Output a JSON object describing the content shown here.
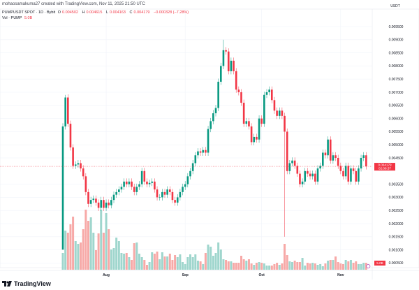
{
  "credit": "mohaosamakuma27 created with TradingView.com, Nov 11, 2025 21:50 UTC",
  "legend": {
    "symbol": "PUMPUSDT SPOT · 1D · Bybit",
    "open_label": "O",
    "open": "0.004502",
    "high_label": "H",
    "high": "0.004615",
    "low_label": "L",
    "low": "0.004163",
    "close_label": "C",
    "close": "0.004179",
    "change": "−0.000328 (−7.28%)",
    "volume_label": "Vol · PUMP",
    "volume": "5.0B"
  },
  "branding": "TradingView",
  "colors": {
    "up": "#089981",
    "down": "#f23645",
    "vol_up": "#9fd6cd",
    "vol_down": "#f7a9a7",
    "grid": "#f0f3fa"
  },
  "chart_data": {
    "type": "candlestick",
    "interval": "1D",
    "first_date": "2025-07-15",
    "first_open": 0.00101,
    "currency": "USDT",
    "y_ticks": [
      "0.009500",
      "0.009000",
      "0.008500",
      "0.008000",
      "0.007500",
      "0.007000",
      "0.006500",
      "0.006000",
      "0.005500",
      "0.005000",
      "0.004500",
      "0.003500",
      "0.003000",
      "0.002500",
      "0.002000",
      "0.001500",
      "0.001000",
      "0.000500"
    ],
    "ylim": [
      0.0003,
      0.0098
    ],
    "x_ticks": [
      {
        "label": "Aug",
        "date": "2025-08-01"
      },
      {
        "label": "Sep",
        "date": "2025-09-01"
      },
      {
        "label": "Oct",
        "date": "2025-10-01"
      },
      {
        "label": "Nov",
        "date": "2025-11-01"
      }
    ],
    "last_price": "0.004179",
    "countdown": "02:08:37",
    "last_volume_label": "5.0B",
    "close": [
      0.0057,
      0.0068,
      0.0058,
      0.0049,
      0.0042,
      0.00425,
      0.0043,
      0.0041,
      0.0038,
      0.0032,
      0.00275,
      0.0029,
      0.00295,
      0.0028,
      0.0026,
      0.0029,
      0.0026,
      0.0028,
      0.0027,
      0.0029,
      0.0031,
      0.0032,
      0.0033,
      0.0034,
      0.0036,
      0.0035,
      0.0036,
      0.0034,
      0.0032,
      0.0034,
      0.0035,
      0.004,
      0.0036,
      0.0035,
      0.00355,
      0.0036,
      0.0033,
      0.003,
      0.003,
      0.0032,
      0.0031,
      0.0033,
      0.0032,
      0.0029,
      0.0028,
      0.003,
      0.0032,
      0.0034,
      0.0035,
      0.0038,
      0.004,
      0.0043,
      0.0046,
      0.00475,
      0.0047,
      0.0048,
      0.0047,
      0.0056,
      0.0059,
      0.0062,
      0.0064,
      0.0074,
      0.008,
      0.0086,
      0.00855,
      0.0078,
      0.0082,
      0.0078,
      0.0071,
      0.007,
      0.0066,
      0.0058,
      0.0059,
      0.0057,
      0.0051,
      0.0053,
      0.0052,
      0.006,
      0.0058,
      0.0069,
      0.007,
      0.0071,
      0.0067,
      0.0063,
      0.0061,
      0.0063,
      0.0061,
      0.0055,
      0.004,
      0.0043,
      0.0044,
      0.0042,
      0.0039,
      0.0035,
      0.0036,
      0.004,
      0.0039,
      0.0038,
      0.0039,
      0.0036,
      0.0041,
      0.0042,
      0.0047,
      0.0046,
      0.0052,
      0.0044,
      0.0046,
      0.0045,
      0.0042,
      0.004,
      0.0038,
      0.0042,
      0.0036,
      0.0041,
      0.004,
      0.0036,
      0.0041,
      0.0045,
      0.0046,
      0.004179
    ],
    "volume_unit": "B",
    "volume": [
      12,
      28,
      26.5,
      32.5,
      38,
      20.5,
      18.5,
      19.5,
      29,
      43,
      35,
      37.5,
      26.5,
      14,
      26,
      43,
      26.5,
      40.5,
      29,
      14.5,
      15.5,
      23,
      20.5,
      12,
      11.5,
      12,
      9,
      7,
      19,
      19.5,
      11.5,
      9,
      7,
      3.5,
      5.5,
      12.5,
      11.5,
      13,
      7.5,
      12.5,
      9.5,
      9.5,
      11.5,
      7,
      10.5,
      9,
      11,
      5.5,
      4,
      9,
      11,
      9,
      11,
      6.5,
      6,
      4,
      12,
      18,
      16.5,
      10,
      12,
      19.5,
      14.5,
      7.5,
      7,
      6,
      6,
      5,
      5,
      5,
      10,
      7.5,
      6.5,
      7.5,
      4.5,
      3.5,
      5,
      5.5,
      5,
      4.5,
      3,
      3,
      3,
      4,
      5,
      3.5,
      4.5,
      18.5,
      10.5,
      6,
      5.5,
      6.5,
      5.5,
      5.5,
      8.5,
      3,
      5,
      4.5,
      5,
      4.5,
      3.5,
      4,
      2.5,
      4.5,
      6.5,
      7,
      7,
      9.5,
      5.5,
      4.5,
      4,
      7,
      6,
      7,
      5,
      6,
      4,
      4,
      5,
      5
    ],
    "notable_extremes": [
      {
        "date": "2025-07-16",
        "high": 0.0069
      },
      {
        "date": "2025-09-16",
        "high": 0.009
      },
      {
        "date": "2025-10-10",
        "low": 0.0015
      }
    ]
  }
}
